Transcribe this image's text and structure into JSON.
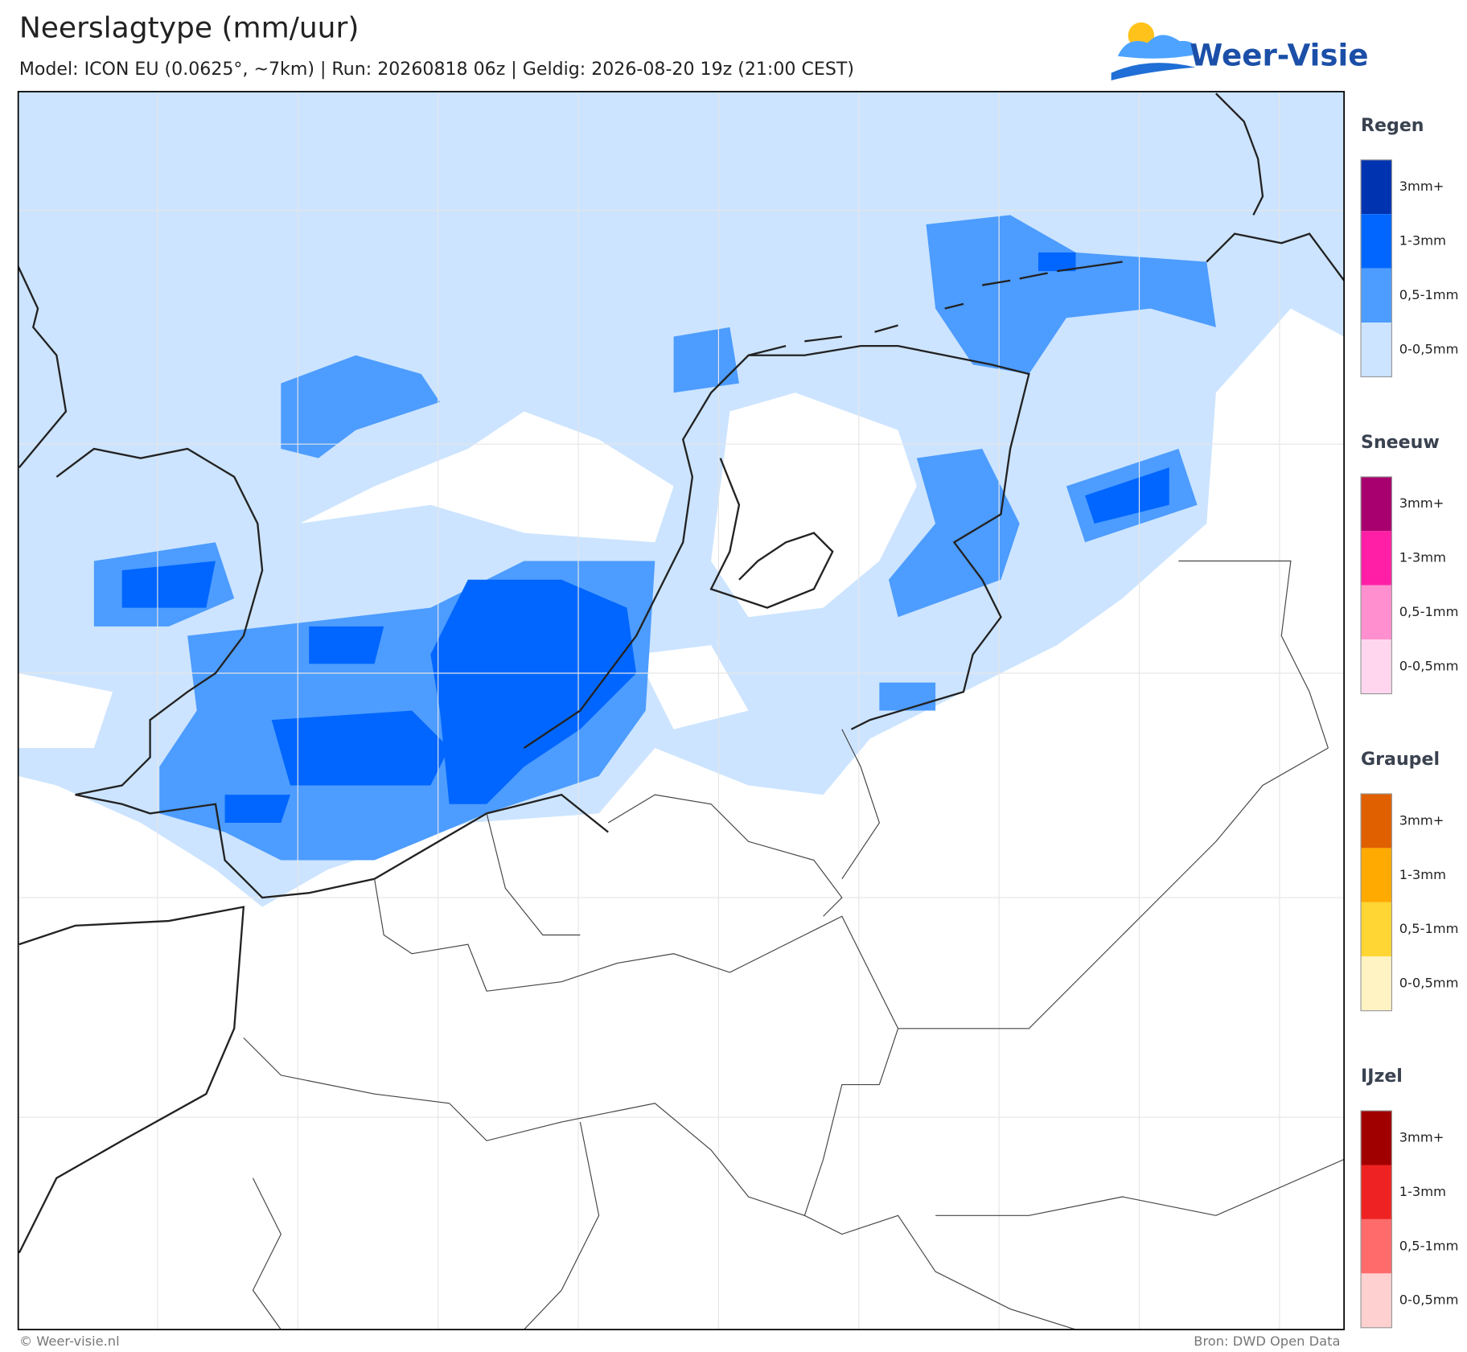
{
  "header": {
    "title": "Neerslagtype (mm/uur)",
    "subtitle": "Model: ICON EU (0.0625°, ~7km)  |  Run: 20260818 06z  |  Geldig: 2026-08-20 19z (21:00 CEST)"
  },
  "logo": {
    "text": "Weer-Visie"
  },
  "legend": {
    "groups": [
      {
        "title": "Regen",
        "items": [
          {
            "label": "3mm+",
            "color": "#0033b0"
          },
          {
            "label": "1-3mm",
            "color": "#0066ff"
          },
          {
            "label": "0,5-1mm",
            "color": "#4d9cff"
          },
          {
            "label": "0-0,5mm",
            "color": "#cce4ff"
          }
        ]
      },
      {
        "title": "Sneeuw",
        "items": [
          {
            "label": "3mm+",
            "color": "#a8006e"
          },
          {
            "label": "1-3mm",
            "color": "#ff1fa6"
          },
          {
            "label": "0,5-1mm",
            "color": "#ff8fcf"
          },
          {
            "label": "0-0,5mm",
            "color": "#ffd6ee"
          }
        ]
      },
      {
        "title": "Graupel",
        "items": [
          {
            "label": "3mm+",
            "color": "#e06000"
          },
          {
            "label": "1-3mm",
            "color": "#ffaa00"
          },
          {
            "label": "0,5-1mm",
            "color": "#ffd633"
          },
          {
            "label": "0-0,5mm",
            "color": "#fff3c4"
          }
        ]
      },
      {
        "title": "IJzel",
        "items": [
          {
            "label": "3mm+",
            "color": "#a00000"
          },
          {
            "label": "1-3mm",
            "color": "#ee2222"
          },
          {
            "label": "0,5-1mm",
            "color": "#ff6b6b"
          },
          {
            "label": "0-0,5mm",
            "color": "#ffd0d0"
          }
        ]
      }
    ]
  },
  "footer": {
    "left": "© Weer-visie.nl",
    "right": "Bron: DWD Open Data"
  }
}
